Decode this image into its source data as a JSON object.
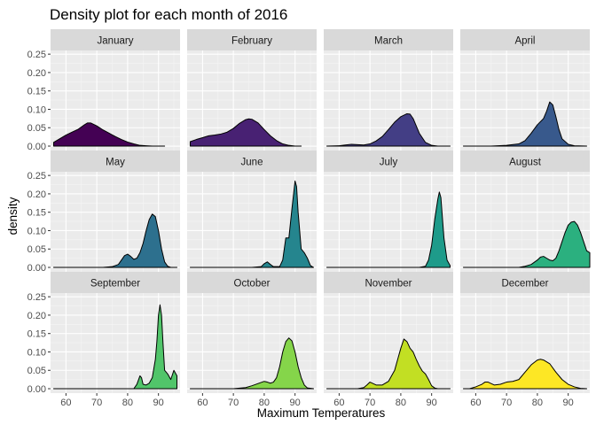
{
  "chart_data": {
    "type": "area",
    "title": "Density plot for each month of 2016",
    "xlabel": "Maximum Temperatures",
    "ylabel": "density",
    "xlim": [
      55,
      97
    ],
    "ylim": [
      -0.012,
      0.26
    ],
    "x_ticks": [
      60,
      70,
      80,
      90
    ],
    "y_ticks": [
      0.0,
      0.05,
      0.1,
      0.15,
      0.2,
      0.25
    ],
    "y_tick_labels": [
      "0.00",
      "0.05",
      "0.10",
      "0.15",
      "0.20",
      "0.25"
    ],
    "grid": true,
    "facets": [
      {
        "name": "January",
        "color": "#440154",
        "points": [
          [
            56,
            0.01
          ],
          [
            58,
            0.02
          ],
          [
            60,
            0.03
          ],
          [
            62,
            0.038
          ],
          [
            64,
            0.046
          ],
          [
            66,
            0.058
          ],
          [
            67,
            0.063
          ],
          [
            68,
            0.063
          ],
          [
            70,
            0.055
          ],
          [
            72,
            0.044
          ],
          [
            74,
            0.035
          ],
          [
            76,
            0.026
          ],
          [
            78,
            0.018
          ],
          [
            80,
            0.011
          ],
          [
            82,
            0.006
          ],
          [
            84,
            0.002
          ],
          [
            86,
            0.001
          ],
          [
            88,
            0.0
          ],
          [
            92,
            0.0
          ]
        ]
      },
      {
        "name": "February",
        "color": "#482173",
        "points": [
          [
            56,
            0.012
          ],
          [
            58,
            0.018
          ],
          [
            60,
            0.023
          ],
          [
            62,
            0.028
          ],
          [
            64,
            0.03
          ],
          [
            66,
            0.033
          ],
          [
            68,
            0.038
          ],
          [
            70,
            0.048
          ],
          [
            72,
            0.062
          ],
          [
            74,
            0.072
          ],
          [
            75,
            0.074
          ],
          [
            76,
            0.073
          ],
          [
            78,
            0.063
          ],
          [
            80,
            0.045
          ],
          [
            82,
            0.028
          ],
          [
            84,
            0.015
          ],
          [
            86,
            0.006
          ],
          [
            88,
            0.002
          ],
          [
            90,
            0.0
          ],
          [
            92,
            0.0
          ]
        ]
      },
      {
        "name": "March",
        "color": "#433E85",
        "points": [
          [
            56,
            0.0
          ],
          [
            60,
            0.001
          ],
          [
            62,
            0.003
          ],
          [
            64,
            0.005
          ],
          [
            66,
            0.004
          ],
          [
            68,
            0.003
          ],
          [
            70,
            0.006
          ],
          [
            72,
            0.014
          ],
          [
            74,
            0.026
          ],
          [
            76,
            0.045
          ],
          [
            78,
            0.065
          ],
          [
            80,
            0.08
          ],
          [
            82,
            0.088
          ],
          [
            83,
            0.087
          ],
          [
            84,
            0.075
          ],
          [
            86,
            0.035
          ],
          [
            88,
            0.01
          ],
          [
            90,
            0.002
          ],
          [
            92,
            0.0
          ],
          [
            96,
            0.0
          ]
        ]
      },
      {
        "name": "April",
        "color": "#38598C",
        "points": [
          [
            56,
            0.0
          ],
          [
            65,
            0.0
          ],
          [
            70,
            0.002
          ],
          [
            74,
            0.006
          ],
          [
            76,
            0.015
          ],
          [
            78,
            0.035
          ],
          [
            80,
            0.058
          ],
          [
            82,
            0.075
          ],
          [
            83,
            0.095
          ],
          [
            84,
            0.12
          ],
          [
            85,
            0.112
          ],
          [
            86,
            0.08
          ],
          [
            87,
            0.045
          ],
          [
            88,
            0.02
          ],
          [
            90,
            0.005
          ],
          [
            92,
            0.001
          ],
          [
            96,
            0.0
          ]
        ]
      },
      {
        "name": "May",
        "color": "#2D708E",
        "points": [
          [
            56,
            0.0
          ],
          [
            72,
            0.0
          ],
          [
            75,
            0.002
          ],
          [
            77,
            0.008
          ],
          [
            78,
            0.02
          ],
          [
            79,
            0.032
          ],
          [
            80,
            0.036
          ],
          [
            81,
            0.03
          ],
          [
            82,
            0.022
          ],
          [
            83,
            0.025
          ],
          [
            84,
            0.04
          ],
          [
            85,
            0.065
          ],
          [
            86,
            0.1
          ],
          [
            87,
            0.13
          ],
          [
            88,
            0.145
          ],
          [
            89,
            0.138
          ],
          [
            90,
            0.1
          ],
          [
            91,
            0.05
          ],
          [
            92,
            0.015
          ],
          [
            93,
            0.003
          ],
          [
            94,
            0.0
          ],
          [
            96,
            0.0
          ]
        ]
      },
      {
        "name": "June",
        "color": "#25858E",
        "points": [
          [
            56,
            0.0
          ],
          [
            76,
            0.0
          ],
          [
            79,
            0.002
          ],
          [
            80,
            0.01
          ],
          [
            81,
            0.015
          ],
          [
            82,
            0.008
          ],
          [
            83,
            0.002
          ],
          [
            85,
            0.002
          ],
          [
            86,
            0.02
          ],
          [
            87,
            0.08
          ],
          [
            88,
            0.08
          ],
          [
            89,
            0.16
          ],
          [
            90,
            0.235
          ],
          [
            90.5,
            0.22
          ],
          [
            91,
            0.15
          ],
          [
            92,
            0.05
          ],
          [
            93,
            0.04
          ],
          [
            94,
            0.025
          ],
          [
            95,
            0.005
          ],
          [
            96,
            0.0
          ]
        ]
      },
      {
        "name": "July",
        "color": "#1E9B8A",
        "points": [
          [
            56,
            0.0
          ],
          [
            86,
            0.0
          ],
          [
            88,
            0.003
          ],
          [
            89,
            0.02
          ],
          [
            90,
            0.06
          ],
          [
            91,
            0.13
          ],
          [
            92,
            0.185
          ],
          [
            92.5,
            0.205
          ],
          [
            93,
            0.19
          ],
          [
            94,
            0.08
          ],
          [
            95,
            0.02
          ],
          [
            96,
            0.005
          ]
        ]
      },
      {
        "name": "August",
        "color": "#2BB07F",
        "points": [
          [
            56,
            0.0
          ],
          [
            74,
            0.0
          ],
          [
            76,
            0.003
          ],
          [
            78,
            0.008
          ],
          [
            80,
            0.02
          ],
          [
            81,
            0.028
          ],
          [
            82,
            0.03
          ],
          [
            83,
            0.025
          ],
          [
            84,
            0.02
          ],
          [
            85,
            0.018
          ],
          [
            86,
            0.025
          ],
          [
            87,
            0.045
          ],
          [
            88,
            0.07
          ],
          [
            89,
            0.095
          ],
          [
            90,
            0.115
          ],
          [
            91,
            0.123
          ],
          [
            92,
            0.125
          ],
          [
            93,
            0.115
          ],
          [
            94,
            0.095
          ],
          [
            95,
            0.07
          ],
          [
            96,
            0.045
          ],
          [
            97,
            0.04
          ]
        ]
      },
      {
        "name": "September",
        "color": "#51C56A",
        "points": [
          [
            56,
            0.0
          ],
          [
            82,
            0.0
          ],
          [
            83,
            0.012
          ],
          [
            84,
            0.035
          ],
          [
            84.5,
            0.03
          ],
          [
            85,
            0.012
          ],
          [
            86,
            0.01
          ],
          [
            87,
            0.015
          ],
          [
            88,
            0.03
          ],
          [
            89,
            0.08
          ],
          [
            89.5,
            0.13
          ],
          [
            90,
            0.2
          ],
          [
            90.5,
            0.228
          ],
          [
            91,
            0.2
          ],
          [
            91.5,
            0.12
          ],
          [
            92,
            0.05
          ],
          [
            93,
            0.04
          ],
          [
            94,
            0.025
          ],
          [
            95,
            0.05
          ],
          [
            96,
            0.035
          ]
        ]
      },
      {
        "name": "October",
        "color": "#85D54A",
        "points": [
          [
            56,
            0.0
          ],
          [
            70,
            0.0
          ],
          [
            74,
            0.003
          ],
          [
            76,
            0.008
          ],
          [
            78,
            0.014
          ],
          [
            80,
            0.02
          ],
          [
            81,
            0.018
          ],
          [
            82,
            0.015
          ],
          [
            83,
            0.018
          ],
          [
            84,
            0.03
          ],
          [
            85,
            0.06
          ],
          [
            86,
            0.1
          ],
          [
            87,
            0.128
          ],
          [
            88,
            0.138
          ],
          [
            89,
            0.13
          ],
          [
            90,
            0.1
          ],
          [
            91,
            0.06
          ],
          [
            92,
            0.03
          ],
          [
            93,
            0.01
          ],
          [
            94,
            0.002
          ],
          [
            96,
            0.0
          ]
        ]
      },
      {
        "name": "November",
        "color": "#C2DF23",
        "points": [
          [
            56,
            0.0
          ],
          [
            66,
            0.0
          ],
          [
            68,
            0.003
          ],
          [
            69,
            0.01
          ],
          [
            70,
            0.018
          ],
          [
            71,
            0.014
          ],
          [
            72,
            0.01
          ],
          [
            74,
            0.01
          ],
          [
            76,
            0.02
          ],
          [
            78,
            0.05
          ],
          [
            79,
            0.08
          ],
          [
            80,
            0.11
          ],
          [
            81,
            0.135
          ],
          [
            82,
            0.128
          ],
          [
            83,
            0.11
          ],
          [
            84,
            0.1
          ],
          [
            85,
            0.08
          ],
          [
            86,
            0.062
          ],
          [
            87,
            0.048
          ],
          [
            88,
            0.04
          ],
          [
            89,
            0.025
          ],
          [
            90,
            0.008
          ],
          [
            91,
            0.002
          ],
          [
            92,
            0.0
          ],
          [
            96,
            0.0
          ]
        ]
      },
      {
        "name": "December",
        "color": "#FDE725",
        "points": [
          [
            56,
            0.0
          ],
          [
            58,
            0.0
          ],
          [
            60,
            0.005
          ],
          [
            62,
            0.012
          ],
          [
            63,
            0.018
          ],
          [
            64,
            0.018
          ],
          [
            66,
            0.01
          ],
          [
            68,
            0.012
          ],
          [
            70,
            0.018
          ],
          [
            72,
            0.02
          ],
          [
            74,
            0.025
          ],
          [
            76,
            0.045
          ],
          [
            78,
            0.065
          ],
          [
            80,
            0.078
          ],
          [
            81,
            0.08
          ],
          [
            82,
            0.078
          ],
          [
            84,
            0.068
          ],
          [
            86,
            0.045
          ],
          [
            88,
            0.025
          ],
          [
            90,
            0.012
          ],
          [
            92,
            0.005
          ],
          [
            94,
            0.001
          ],
          [
            96,
            0.0
          ]
        ]
      }
    ]
  }
}
